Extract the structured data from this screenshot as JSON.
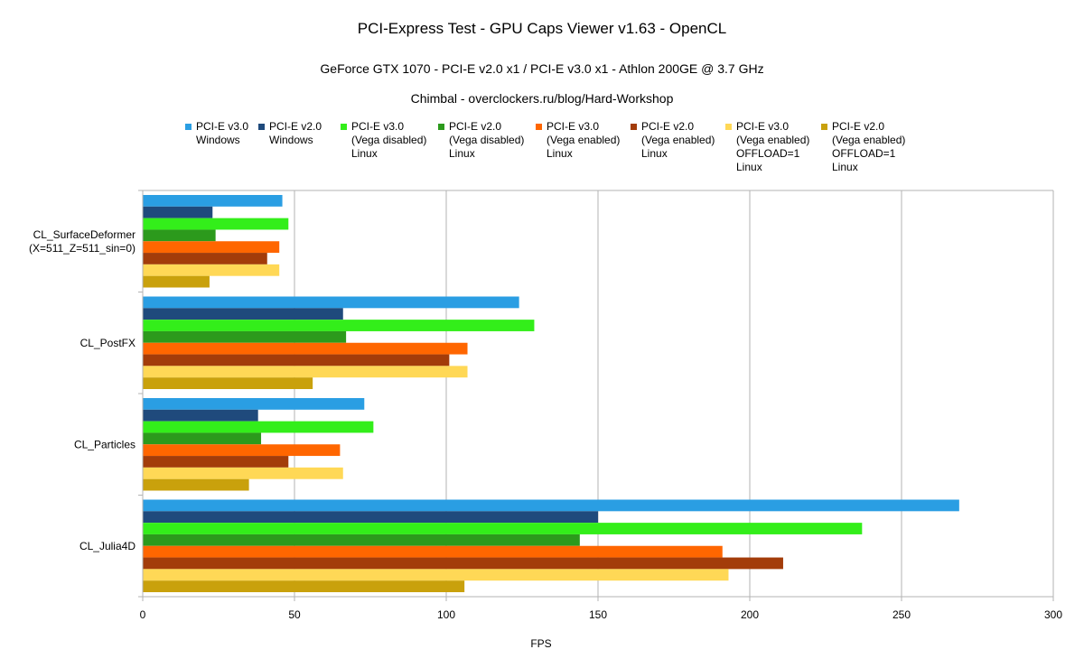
{
  "chart_data": {
    "type": "bar",
    "orientation": "horizontal",
    "title": "PCI-Express Test - GPU Caps Viewer v1.63 - OpenCL",
    "subtitle": "GeForce GTX 1070 - PCI-E v2.0 x1 / PCI-E v3.0 x1 - Athlon 200GE @ 3.7 GHz",
    "subtitle2": "Chimbal - overclockers.ru/blog/Hard-Workshop",
    "xlabel": "FPS",
    "ylabel": "",
    "xlim": [
      0,
      300
    ],
    "xticks": [
      0,
      50,
      100,
      150,
      200,
      250,
      300
    ],
    "grid": true,
    "legend_position": "top",
    "categories": [
      [
        "CL_SurfaceDeformer",
        "(X=511_Z=511_sin=0)"
      ],
      [
        "CL_PostFX"
      ],
      [
        "CL_Particles"
      ],
      [
        "CL_Julia4D"
      ]
    ],
    "series": [
      {
        "name": "PCI-E v3.0\nWindows",
        "color": "#2a9ee3",
        "values": [
          46,
          124,
          73,
          269
        ]
      },
      {
        "name": "PCI-E v2.0\nWindows",
        "color": "#1f4a7c",
        "values": [
          23,
          66,
          38,
          150
        ]
      },
      {
        "name": "PCI-E v3.0\n(Vega disabled)\nLinux",
        "color": "#33ee1a",
        "values": [
          48,
          129,
          76,
          237
        ]
      },
      {
        "name": "PCI-E v2.0\n(Vega disabled)\nLinux",
        "color": "#2c9a1c",
        "values": [
          24,
          67,
          39,
          144
        ]
      },
      {
        "name": "PCI-E v3.0\n(Vega enabled)\nLinux",
        "color": "#ff6600",
        "values": [
          45,
          107,
          65,
          191
        ]
      },
      {
        "name": "PCI-E v2.0\n(Vega enabled)\nLinux",
        "color": "#a33c0a",
        "values": [
          41,
          101,
          48,
          211
        ]
      },
      {
        "name": "PCI-E v3.0\n(Vega enabled)\nOFFLOAD=1\nLinux",
        "color": "#ffd856",
        "values": [
          45,
          107,
          66,
          193
        ]
      },
      {
        "name": "PCI-E v2.0\n(Vega enabled)\nOFFLOAD=1\nLinux",
        "color": "#c9a10c",
        "values": [
          22,
          56,
          35,
          106
        ]
      }
    ]
  }
}
